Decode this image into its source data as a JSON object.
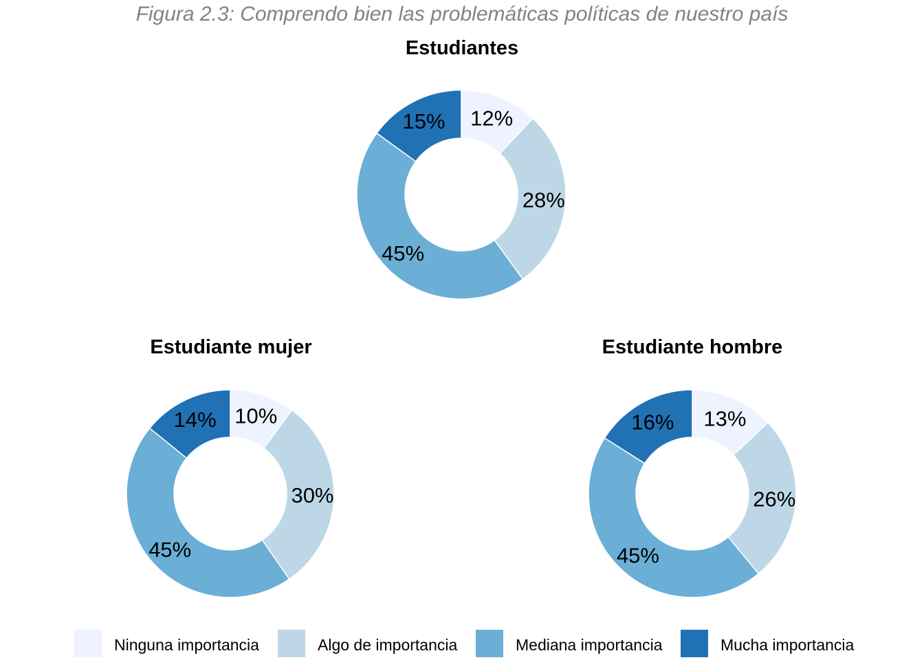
{
  "figure_title": "Figura 2.3: Comprendo bien las problemáticas políticas de nuestro país",
  "categories": [
    "Ninguna importancia",
    "Algo de importancia",
    "Mediana importancia",
    "Mucha importancia"
  ],
  "colors": [
    "#eff3ff",
    "#bdd7e7",
    "#6baed6",
    "#2171b5"
  ],
  "chart_data": [
    {
      "type": "pie",
      "variant": "donut",
      "title": "Estudiantes",
      "categories": [
        "Ninguna importancia",
        "Algo de importancia",
        "Mediana importancia",
        "Mucha importancia"
      ],
      "values": [
        12,
        28,
        45,
        15
      ],
      "labels": [
        "12%",
        "28%",
        "45%",
        "15%"
      ]
    },
    {
      "type": "pie",
      "variant": "donut",
      "title": "Estudiante mujer",
      "categories": [
        "Ninguna importancia",
        "Algo de importancia",
        "Mediana importancia",
        "Mucha importancia"
      ],
      "values": [
        10,
        30,
        45,
        14
      ],
      "labels": [
        "10%",
        "30%",
        "45%",
        "14%"
      ]
    },
    {
      "type": "pie",
      "variant": "donut",
      "title": "Estudiante hombre",
      "categories": [
        "Ninguna importancia",
        "Algo de importancia",
        "Mediana importancia",
        "Mucha importancia"
      ],
      "values": [
        13,
        26,
        45,
        16
      ],
      "labels": [
        "13%",
        "26%",
        "45%",
        "16%"
      ]
    }
  ],
  "legend": {
    "position": "bottom",
    "items": [
      "Ninguna importancia",
      "Algo de importancia",
      "Mediana importancia",
      "Mucha importancia"
    ]
  }
}
